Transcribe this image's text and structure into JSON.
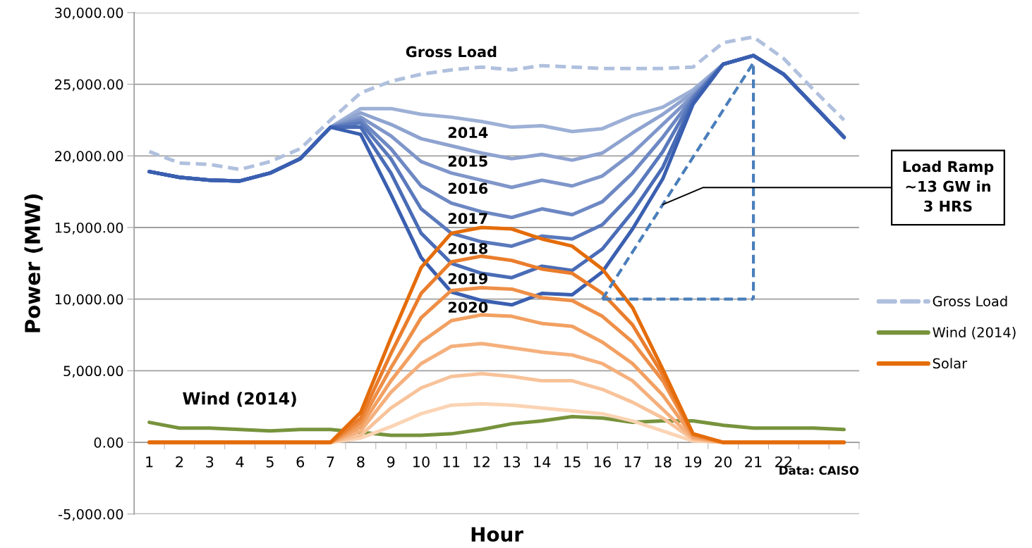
{
  "chart_data": {
    "type": "line",
    "xlabel": "Hour",
    "ylabel": "Power (MW)",
    "categories": [
      "1",
      "2",
      "3",
      "4",
      "5",
      "6",
      "7",
      "8",
      "9",
      "10",
      "11",
      "12",
      "13",
      "14",
      "15",
      "16",
      "17",
      "18",
      "19",
      "20",
      "21",
      "22",
      null,
      null
    ],
    "ylim": [
      -5000,
      30000
    ],
    "yticks": [
      {
        "value": -5000,
        "label": "-5,000.00"
      },
      {
        "value": 0,
        "label": "0.00"
      },
      {
        "value": 5000,
        "label": "5,000.00"
      },
      {
        "value": 10000,
        "label": "10,000.00"
      },
      {
        "value": 15000,
        "label": "15,000.00"
      },
      {
        "value": 20000,
        "label": "20,000.00"
      },
      {
        "value": 25000,
        "label": "25,000.00"
      },
      {
        "value": 30000,
        "label": "30,000.00"
      }
    ],
    "grid": "y",
    "legend": "right",
    "series": [
      {
        "name": "Gross Load",
        "color": "#b0c0de",
        "line_style": "dashed",
        "values": [
          20300,
          19500,
          19400,
          19050,
          19600,
          20500,
          22500,
          24400,
          25200,
          25700,
          26000,
          26200,
          26000,
          26300,
          26200,
          26100,
          26100,
          26100,
          26200,
          27900,
          28300,
          26800,
          24600,
          22500
        ]
      },
      {
        "color": "#9db0d6",
        "values": [
          18900,
          18500,
          18300,
          18250,
          18800,
          19800,
          22000,
          23300,
          23300,
          22900,
          22700,
          22400,
          22000,
          22100,
          21700,
          21900,
          22800,
          23400,
          24600,
          26400,
          27000,
          25700,
          23500,
          21300
        ]
      },
      {
        "color": "#8fa3d0",
        "values": [
          18900,
          18500,
          18300,
          18250,
          18800,
          19800,
          22000,
          23000,
          22200,
          21200,
          20700,
          20200,
          19800,
          20100,
          19700,
          20200,
          21600,
          22900,
          24400,
          26400,
          27000,
          25700,
          23500,
          21300
        ]
      },
      {
        "color": "#7f96ca",
        "values": [
          18900,
          18500,
          18300,
          18250,
          18800,
          19800,
          22000,
          22700,
          21400,
          19600,
          18800,
          18300,
          17800,
          18300,
          17900,
          18600,
          20200,
          22200,
          24200,
          26400,
          27000,
          25700,
          23500,
          21300
        ]
      },
      {
        "color": "#6d88c3",
        "values": [
          18900,
          18500,
          18300,
          18250,
          18800,
          19800,
          22000,
          22500,
          20500,
          17900,
          16700,
          16100,
          15700,
          16300,
          15900,
          16800,
          18800,
          21300,
          24100,
          26400,
          27000,
          25700,
          23500,
          21300
        ]
      },
      {
        "color": "#5a79bc",
        "values": [
          18900,
          18500,
          18300,
          18250,
          18800,
          19800,
          22000,
          22300,
          19800,
          16300,
          14600,
          14000,
          13700,
          14400,
          14200,
          15200,
          17400,
          20300,
          24000,
          26400,
          27000,
          25700,
          23500,
          21300
        ]
      },
      {
        "color": "#4a6cb6",
        "values": [
          18900,
          18500,
          18300,
          18250,
          18800,
          19800,
          22000,
          22000,
          18800,
          14600,
          12500,
          11800,
          11500,
          12300,
          12000,
          13500,
          16100,
          19200,
          23800,
          26400,
          27000,
          25700,
          23500,
          21300
        ]
      },
      {
        "color": "#3a5fb0",
        "values": [
          18900,
          18500,
          18300,
          18250,
          18800,
          19800,
          22000,
          21500,
          17300,
          12900,
          10500,
          9900,
          9600,
          10400,
          10300,
          11900,
          14900,
          18400,
          23600,
          26400,
          27000,
          25700,
          23500,
          21300
        ]
      },
      {
        "name": "Wind (2014)",
        "color": "#77933c",
        "values": [
          1400,
          1000,
          1000,
          900,
          800,
          900,
          900,
          700,
          500,
          500,
          600,
          900,
          1300,
          1500,
          1800,
          1700,
          1400,
          1500,
          1500,
          1200,
          1000,
          1000,
          1000,
          900
        ]
      },
      {
        "color": "#fbd4b4",
        "values": [
          0,
          0,
          0,
          0,
          0,
          0,
          0,
          300,
          1100,
          2000,
          2600,
          2700,
          2600,
          2400,
          2200,
          2000,
          1500,
          800,
          100,
          0,
          0,
          0,
          0,
          0
        ]
      },
      {
        "color": "#f8c39a",
        "values": [
          0,
          0,
          0,
          0,
          0,
          0,
          0,
          500,
          2400,
          3800,
          4600,
          4800,
          4600,
          4300,
          4300,
          3700,
          2800,
          1700,
          200,
          0,
          0,
          0,
          0,
          0
        ]
      },
      {
        "color": "#f5b07d",
        "values": [
          0,
          0,
          0,
          0,
          0,
          0,
          0,
          800,
          3500,
          5500,
          6700,
          6900,
          6600,
          6300,
          6100,
          5500,
          4300,
          2300,
          300,
          0,
          0,
          0,
          0,
          0
        ]
      },
      {
        "color": "#f2a062",
        "values": [
          0,
          0,
          0,
          0,
          0,
          0,
          0,
          1100,
          4300,
          7000,
          8500,
          8900,
          8800,
          8300,
          8100,
          7000,
          5500,
          3300,
          400,
          0,
          0,
          0,
          0,
          0
        ]
      },
      {
        "color": "#ee8f48",
        "values": [
          0,
          0,
          0,
          0,
          0,
          0,
          0,
          1400,
          5200,
          8700,
          10600,
          10800,
          10700,
          10100,
          9900,
          8800,
          7000,
          4300,
          500,
          0,
          0,
          0,
          0,
          0
        ]
      },
      {
        "color": "#ea7d2c",
        "values": [
          0,
          0,
          0,
          0,
          0,
          0,
          0,
          1700,
          6200,
          10400,
          12600,
          13000,
          12700,
          12100,
          11800,
          10400,
          8200,
          4700,
          600,
          0,
          0,
          0,
          0,
          0
        ]
      },
      {
        "name": "Solar",
        "color": "#e46c0a",
        "values": [
          0,
          0,
          0,
          0,
          0,
          0,
          0,
          2100,
          7300,
          12200,
          14600,
          15000,
          14900,
          14200,
          13700,
          12100,
          9400,
          5100,
          600,
          0,
          0,
          0,
          0,
          0
        ]
      },
      {
        "color": "#4a7ebb",
        "line_style": "dashed",
        "x": [
          "16",
          "21",
          "21"
        ],
        "values": [
          10000,
          26500,
          10000
        ]
      },
      {
        "color": "#4a7ebb",
        "line_style": "dashed",
        "x": [
          "16",
          "21"
        ],
        "values": [
          10000,
          10000
        ]
      }
    ],
    "annotations": [
      {
        "text": "Gross Load",
        "x": "11",
        "y": 26000
      },
      {
        "text": "2014",
        "x": "11",
        "y": 22700
      },
      {
        "text": "2015",
        "x": "11",
        "y": 20700
      },
      {
        "text": "2016",
        "x": "11",
        "y": 18800
      },
      {
        "text": "2017",
        "x": "11",
        "y": 16700
      },
      {
        "text": "2018",
        "x": "11",
        "y": 14600
      },
      {
        "text": "2019",
        "x": "11",
        "y": 12500
      },
      {
        "text": "2020",
        "x": "11",
        "y": 10500
      },
      {
        "text": "Wind (2014)",
        "x": "4",
        "y": 900
      },
      {
        "text": "Load Ramp\n~13 GW in\n3 HRS",
        "x": "18",
        "y": 16600
      },
      "Data: CAISO"
    ]
  }
}
